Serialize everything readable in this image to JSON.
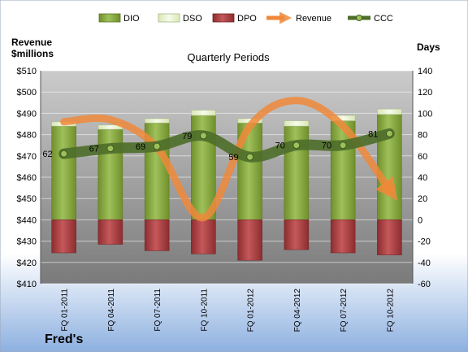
{
  "chart_data": {
    "type": "bar",
    "title": "Quarterly Periods",
    "company": "Fred's",
    "left_axis_label": [
      "Revenue",
      "$millions"
    ],
    "right_axis_label": "Days",
    "categories": [
      "FQ 01-2011",
      "FQ 04-2011",
      "FQ 07-2011",
      "FQ 10-2011",
      "FQ 01-2012",
      "FQ 04-2012",
      "FQ 07-2012",
      "FQ 10-2012"
    ],
    "left_axis": {
      "min": 410,
      "max": 510,
      "step": 10,
      "prefix": "$"
    },
    "right_axis": {
      "min": -60,
      "max": 140,
      "step": 20
    },
    "legend": [
      "DIO",
      "DSO",
      "DPO",
      "Revenue",
      "CCC"
    ],
    "legend_position": "top",
    "grid": true,
    "series": [
      {
        "name": "DIO",
        "axis": "days",
        "color": "#8aac3e",
        "values": [
          88,
          85,
          91,
          98,
          91,
          88,
          93,
          99
        ]
      },
      {
        "name": "DSO",
        "axis": "days",
        "color": "#eef5d8",
        "values": [
          4,
          4,
          4,
          5,
          4,
          5,
          5,
          5
        ]
      },
      {
        "name": "DPO",
        "axis": "days",
        "color": "#b94a4c",
        "values": [
          -31,
          -23,
          -29,
          -32,
          -38,
          -28,
          -31,
          -33
        ]
      },
      {
        "name": "Revenue",
        "axis": "revenue",
        "color": "#f0883a",
        "values": [
          486,
          487,
          474,
          441,
          484,
          496,
          484,
          454
        ]
      },
      {
        "name": "CCC",
        "axis": "days",
        "color": "#4e6e2a",
        "values": [
          62,
          67,
          69,
          79,
          59,
          70,
          70,
          81
        ]
      }
    ]
  }
}
